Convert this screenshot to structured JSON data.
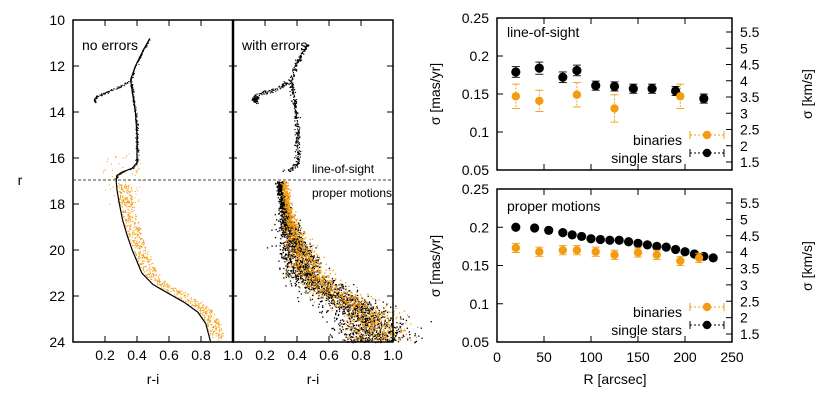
{
  "colors": {
    "orange": "#f39c12",
    "black": "#000000",
    "grey": "#444444"
  },
  "chart_data": [
    {
      "id": "cmd",
      "type": "scatter",
      "subpanels": [
        {
          "title": "no errors"
        },
        {
          "title": "with errors"
        }
      ],
      "xlabel": "r-i",
      "ylabel": "r",
      "xlim": [
        0.0,
        1.0
      ],
      "ylim": [
        24,
        10
      ],
      "x_ticks": [
        "0.2",
        "0.4",
        "0.6",
        "0.8",
        "1.0"
      ],
      "y_ticks": [
        "10",
        "12",
        "14",
        "16",
        "18",
        "20",
        "22",
        "24"
      ],
      "divider_r": 17.0,
      "divider_labels": {
        "top": "line-of-sight",
        "bottom": "proper motions"
      },
      "series": [
        {
          "name": "single stars",
          "color": "#000000"
        },
        {
          "name": "binaries",
          "color": "#f39c12"
        }
      ]
    },
    {
      "id": "los",
      "type": "scatter",
      "title": "line-of-sight",
      "xlabel": "R [arcsec]",
      "ylabel": "σ [mas/yr]",
      "ylabel_right": "σ [km/s]",
      "xlim": [
        0,
        250
      ],
      "ylim": [
        0.05,
        0.25
      ],
      "y_ticks": [
        "0.05",
        "0.1",
        "0.15",
        "0.2",
        "0.25"
      ],
      "y_right_ticks": [
        "1.5",
        "2",
        "2.5",
        "3",
        "3.5",
        "4",
        "4.5",
        "5",
        "5.5"
      ],
      "legend": [
        "binaries",
        "single stars"
      ],
      "series": [
        {
          "name": "single stars",
          "color": "#000000",
          "x": [
            20,
            45,
            70,
            85,
            105,
            125,
            145,
            165,
            190,
            220
          ],
          "y": [
            0.179,
            0.184,
            0.172,
            0.181,
            0.161,
            0.16,
            0.157,
            0.157,
            0.154,
            0.144
          ],
          "err": [
            0.007,
            0.008,
            0.007,
            0.007,
            0.006,
            0.006,
            0.006,
            0.006,
            0.006,
            0.006
          ]
        },
        {
          "name": "binaries",
          "color": "#f39c12",
          "x": [
            20,
            45,
            85,
            125,
            195
          ],
          "y": [
            0.147,
            0.141,
            0.149,
            0.131,
            0.147
          ],
          "err": [
            0.016,
            0.014,
            0.016,
            0.018,
            0.016
          ]
        }
      ]
    },
    {
      "id": "pm",
      "type": "scatter",
      "title": "proper motions",
      "xlabel": "R [arcsec]",
      "ylabel": "σ [mas/yr]",
      "ylabel_right": "σ [km/s]",
      "xlim": [
        0,
        250
      ],
      "ylim": [
        0.05,
        0.25
      ],
      "x_ticks": [
        "0",
        "50",
        "100",
        "150",
        "200",
        "250"
      ],
      "y_ticks": [
        "0.05",
        "0.1",
        "0.15",
        "0.2",
        "0.25"
      ],
      "y_right_ticks": [
        "1.5",
        "2",
        "2.5",
        "3",
        "3.5",
        "4",
        "4.5",
        "5",
        "5.5"
      ],
      "legend": [
        "binaries",
        "single stars"
      ],
      "series": [
        {
          "name": "single stars",
          "color": "#000000",
          "x": [
            20,
            40,
            55,
            70,
            80,
            90,
            100,
            110,
            120,
            130,
            140,
            150,
            160,
            170,
            180,
            190,
            200,
            210,
            220,
            230
          ],
          "y": [
            0.2,
            0.199,
            0.196,
            0.193,
            0.19,
            0.188,
            0.185,
            0.184,
            0.183,
            0.183,
            0.181,
            0.179,
            0.177,
            0.175,
            0.174,
            0.171,
            0.168,
            0.165,
            0.162,
            0.16
          ],
          "err": [
            0.002,
            0.002,
            0.002,
            0.002,
            0.002,
            0.002,
            0.002,
            0.002,
            0.002,
            0.002,
            0.002,
            0.002,
            0.002,
            0.002,
            0.002,
            0.002,
            0.002,
            0.002,
            0.002,
            0.002
          ]
        },
        {
          "name": "binaries",
          "color": "#f39c12",
          "x": [
            20,
            45,
            70,
            85,
            105,
            125,
            150,
            170,
            195,
            215
          ],
          "y": [
            0.173,
            0.168,
            0.17,
            0.17,
            0.168,
            0.164,
            0.167,
            0.164,
            0.156,
            0.16
          ],
          "err": [
            0.006,
            0.006,
            0.006,
            0.006,
            0.006,
            0.006,
            0.006,
            0.006,
            0.006,
            0.006
          ]
        }
      ]
    }
  ]
}
